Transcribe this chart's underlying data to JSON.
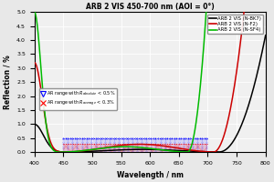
{
  "title": "ARB 2 VIS 450-700 nm (AOI = 0°)",
  "xlabel": "Wavelength / nm",
  "ylabel": "Reflection / %",
  "xlim": [
    400,
    800
  ],
  "ylim": [
    0.0,
    5.0
  ],
  "yticks": [
    0.0,
    0.5,
    1.0,
    1.5,
    2.0,
    2.5,
    3.0,
    3.5,
    4.0,
    4.5,
    5.0
  ],
  "xticks": [
    400,
    450,
    500,
    550,
    600,
    650,
    700,
    750,
    800
  ],
  "line_colors": [
    "#000000",
    "#cc0000",
    "#00bb00"
  ],
  "line_labels": [
    "ARB 2 VIS (N-BK7)",
    "ARB 2 VIS (N-F2)",
    "ARB 2 VIS (N-SF4)"
  ],
  "fill_blue_y": 0.5,
  "fill_red_y": 0.3,
  "fill_xmin": 450,
  "fill_xmax": 700,
  "background_color": "#e8e8e8",
  "plot_bg_color": "#f0f0f0",
  "grid_color": "#ffffff"
}
